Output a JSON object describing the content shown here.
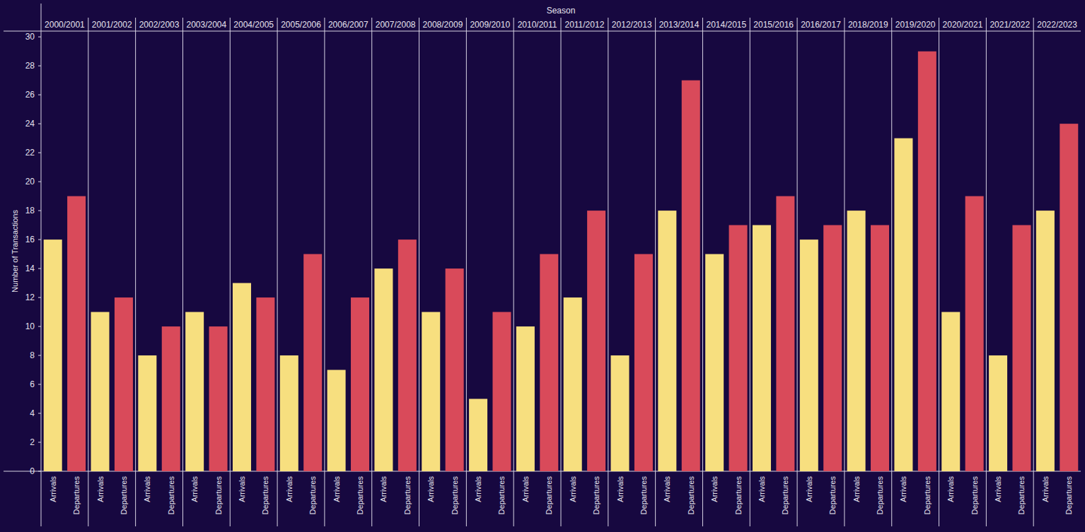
{
  "chart_data": {
    "type": "bar",
    "title": "Season",
    "y_label": "Number of Transactions",
    "categories": [
      "2000/2001",
      "2001/2002",
      "2002/2003",
      "2003/2004",
      "2004/2005",
      "2005/2006",
      "2006/2007",
      "2007/2008",
      "2008/2009",
      "2009/2010",
      "2010/2011",
      "2011/2012",
      "2012/2013",
      "2013/2014",
      "2014/2015",
      "2015/2016",
      "2016/2017",
      "2018/2019",
      "2019/2020",
      "2020/2021",
      "2021/2022",
      "2022/2023"
    ],
    "series": [
      {
        "name": "Arrivals",
        "color": "#f7df7f",
        "values": [
          16,
          11,
          8,
          11,
          13,
          8,
          7,
          14,
          11,
          5,
          10,
          12,
          8,
          18,
          15,
          17,
          16,
          18,
          23,
          11,
          8,
          18
        ]
      },
      {
        "name": "Departures",
        "color": "#d94a5a",
        "values": [
          19,
          12,
          10,
          10,
          12,
          15,
          12,
          16,
          14,
          11,
          15,
          18,
          15,
          27,
          17,
          19,
          17,
          17,
          29,
          19,
          17,
          24
        ]
      }
    ],
    "ylim": [
      0,
      30.4
    ],
    "yticks": [
      0,
      2,
      4,
      6,
      8,
      10,
      12,
      14,
      16,
      18,
      20,
      22,
      24,
      26,
      28,
      30
    ],
    "grid": false
  }
}
